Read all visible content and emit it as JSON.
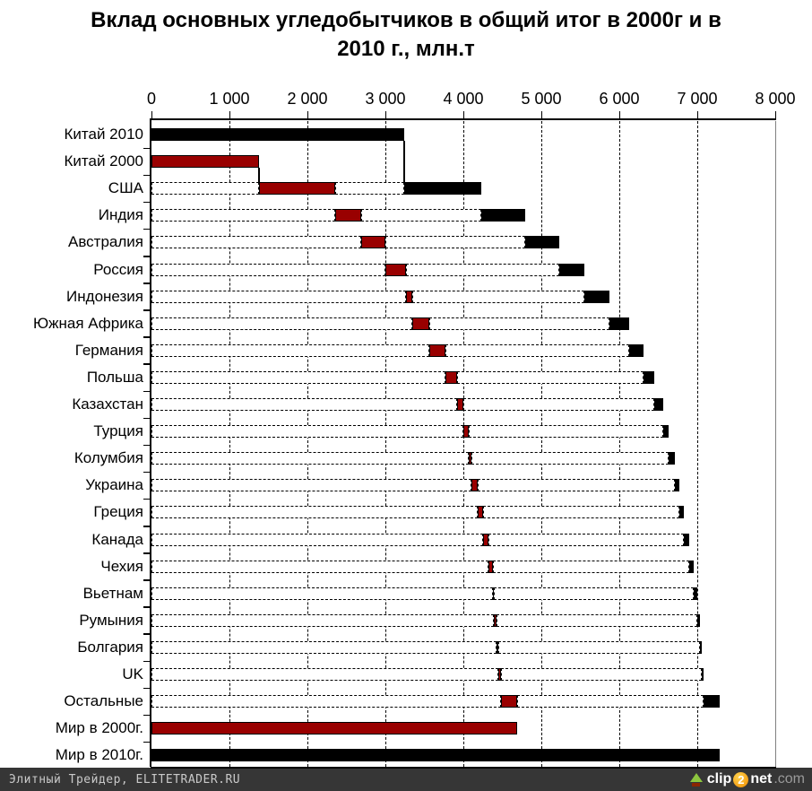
{
  "title": {
    "line1": "Вклад основных угледобытчиков в общий итог в 2000г и в",
    "line2": "2010 г., млн.т"
  },
  "footer": {
    "left_text": "Элитный Трейдер, ELITETRADER.RU",
    "logo_clip": "clip",
    "logo_2": "2",
    "logo_net": "net",
    "logo_com": ".com"
  },
  "colors": {
    "series_2000": "#990000",
    "series_2010": "#000000",
    "footer_bg": "#363636",
    "plot_right_border": "#808080"
  },
  "chart_data": {
    "type": "bar",
    "subtype": "horizontal-waterfall",
    "title": "Вклад основных угледобытчиков в общий итог в 2000г и в 2010 г., млн.т",
    "unit": "млн.т",
    "x_range": [
      0,
      8000
    ],
    "x_tick_step": 1000,
    "x_tick_labels": [
      "0",
      "1 000",
      "2 000",
      "3 000",
      "4 000",
      "5 000",
      "6 000",
      "7 000",
      "8 000"
    ],
    "axis_position": "top",
    "grid": "vertical-dashed",
    "legend": "none",
    "note": "red/black are cumulative [start,end] ranges in млн.т; red = contribution in 2000, black = contribution in 2010",
    "world_total_2000": 4685,
    "world_total_2010": 7290,
    "rows": [
      {
        "label": "Китай 2010",
        "kind": "total2010",
        "black": [
          0,
          3240
        ]
      },
      {
        "label": "Китай 2000",
        "kind": "total2000",
        "red": [
          0,
          1380
        ]
      },
      {
        "label": "США",
        "kind": "step",
        "red": [
          1380,
          2355
        ],
        "black": [
          3240,
          4225
        ]
      },
      {
        "label": "Индия",
        "kind": "step",
        "red": [
          2355,
          2690
        ],
        "black": [
          4225,
          4795
        ]
      },
      {
        "label": "Австралия",
        "kind": "step",
        "red": [
          2690,
          3000
        ],
        "black": [
          4795,
          5230
        ]
      },
      {
        "label": "Россия",
        "kind": "step",
        "red": [
          3000,
          3260
        ],
        "black": [
          5230,
          5550
        ]
      },
      {
        "label": "Индонезия",
        "kind": "step",
        "red": [
          3260,
          3340
        ],
        "black": [
          5550,
          5875
        ]
      },
      {
        "label": "Южная Африка",
        "kind": "step",
        "red": [
          3340,
          3565
        ],
        "black": [
          5875,
          6130
        ]
      },
      {
        "label": "Германия",
        "kind": "step",
        "red": [
          3565,
          3765
        ],
        "black": [
          6130,
          6315
        ]
      },
      {
        "label": "Польша",
        "kind": "step",
        "red": [
          3765,
          3925
        ],
        "black": [
          6315,
          6450
        ]
      },
      {
        "label": "Казахстан",
        "kind": "step",
        "red": [
          3925,
          4000
        ],
        "black": [
          6450,
          6560
        ]
      },
      {
        "label": "Турция",
        "kind": "step",
        "red": [
          4000,
          4065
        ],
        "black": [
          6560,
          6635
        ]
      },
      {
        "label": "Колумбия",
        "kind": "step",
        "red": [
          4065,
          4105
        ],
        "black": [
          6635,
          6710
        ]
      },
      {
        "label": "Украина",
        "kind": "step",
        "red": [
          4105,
          4185
        ],
        "black": [
          6710,
          6770
        ]
      },
      {
        "label": "Греция",
        "kind": "step",
        "red": [
          4185,
          4250
        ],
        "black": [
          6770,
          6830
        ]
      },
      {
        "label": "Канада",
        "kind": "step",
        "red": [
          4250,
          4320
        ],
        "black": [
          6830,
          6900
        ]
      },
      {
        "label": "Чехия",
        "kind": "step",
        "red": [
          4320,
          4385
        ],
        "black": [
          6900,
          6955
        ]
      },
      {
        "label": "Вьетнам",
        "kind": "step",
        "red": [
          4385,
          4395
        ],
        "black": [
          6955,
          7000
        ]
      },
      {
        "label": "Румыния",
        "kind": "step",
        "red": [
          4395,
          4425
        ],
        "black": [
          7000,
          7030
        ]
      },
      {
        "label": "Болгария",
        "kind": "step",
        "red": [
          4425,
          4450
        ],
        "black": [
          7030,
          7060
        ]
      },
      {
        "label": "UK",
        "kind": "step",
        "red": [
          4450,
          4480
        ],
        "black": [
          7060,
          7080
        ]
      },
      {
        "label": "Остальные",
        "kind": "step",
        "red": [
          4480,
          4685
        ],
        "black": [
          7080,
          7290
        ]
      },
      {
        "label": "Мир в 2000г.",
        "kind": "total2000",
        "red": [
          0,
          4685
        ]
      },
      {
        "label": "Мир в 2010г.",
        "kind": "total2010",
        "black": [
          0,
          7290
        ]
      }
    ],
    "connectors": [
      {
        "x": 3240,
        "from_row": 0,
        "to_row": 2
      },
      {
        "x": 1380,
        "from_row": 1,
        "to_row": 2
      }
    ]
  }
}
